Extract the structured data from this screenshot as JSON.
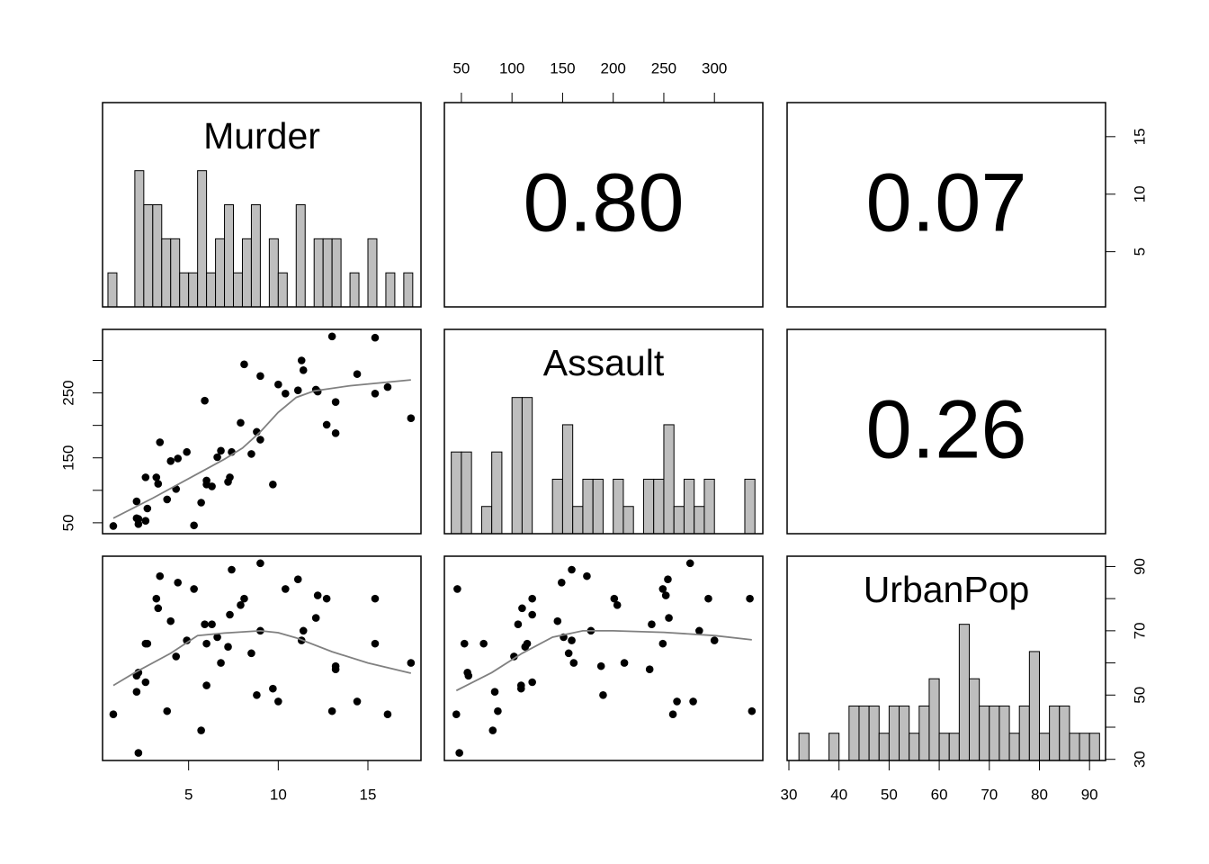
{
  "chart_data": {
    "type": "pairs",
    "variables": [
      {
        "name": "Murder",
        "values": [
          13.2,
          10,
          8.1,
          8.8,
          9,
          7.9,
          3.3,
          5.9,
          15.4,
          17.4,
          5.3,
          2.6,
          10.4,
          7.2,
          2.2,
          6,
          9.7,
          15.4,
          2.1,
          11.3,
          4.4,
          12.1,
          2.7,
          16.1,
          9,
          6,
          4.3,
          12.2,
          2.1,
          7.4,
          11.4,
          11.1,
          13,
          0.8,
          7.3,
          6.6,
          4.9,
          6.3,
          3.4,
          14.4,
          3.8,
          13.2,
          12.7,
          3.2,
          2.2,
          8.5,
          4,
          5.7,
          2.6,
          6.8
        ],
        "lim": [
          0.2,
          17.96
        ],
        "hist": {
          "bins": [
            0.5,
            1,
            1.5,
            2,
            2.5,
            3,
            3.5,
            4,
            4.5,
            5,
            5.5,
            6,
            6.5,
            7,
            7.5,
            8,
            8.5,
            9,
            9.5,
            10,
            10.5,
            11,
            11.5,
            12,
            12.5,
            13,
            13.5,
            14,
            14.5,
            15,
            15.5,
            16,
            16.5,
            17,
            17.5
          ],
          "counts": [
            1,
            0,
            0,
            4,
            3,
            3,
            2,
            2,
            1,
            1,
            4,
            1,
            2,
            3,
            1,
            2,
            3,
            0,
            2,
            1,
            0,
            3,
            0,
            2,
            2,
            2,
            0,
            1,
            0,
            2,
            0,
            1,
            0,
            1
          ],
          "ylim": [
            0,
            6
          ]
        }
      },
      {
        "name": "Assault",
        "values": [
          236,
          263,
          294,
          190,
          276,
          204,
          110,
          238,
          335,
          211,
          46,
          120,
          249,
          113,
          56,
          115,
          109,
          249,
          83,
          300,
          149,
          255,
          72,
          259,
          178,
          109,
          102,
          252,
          57,
          159,
          285,
          254,
          337,
          45,
          120,
          151,
          159,
          106,
          174,
          279,
          86,
          188,
          201,
          120,
          48,
          156,
          145,
          81,
          53,
          161
        ],
        "lim": [
          33.2,
          347.8
        ],
        "hist": {
          "bins": [
            40,
            50,
            60,
            70,
            80,
            90,
            100,
            110,
            120,
            130,
            140,
            150,
            160,
            170,
            180,
            190,
            200,
            210,
            220,
            230,
            240,
            250,
            260,
            270,
            280,
            290,
            300,
            310,
            320,
            330,
            340
          ],
          "counts": [
            3,
            3,
            0,
            1,
            3,
            0,
            5,
            5,
            0,
            0,
            2,
            4,
            1,
            2,
            2,
            0,
            2,
            1,
            0,
            2,
            2,
            4,
            1,
            2,
            1,
            2,
            0,
            0,
            0,
            2
          ],
          "ylim": [
            0,
            7.5
          ]
        }
      },
      {
        "name": "UrbanPop",
        "values": [
          58,
          48,
          80,
          50,
          91,
          78,
          77,
          72,
          80,
          60,
          83,
          54,
          83,
          65,
          57,
          66,
          52,
          66,
          51,
          67,
          85,
          74,
          66,
          44,
          70,
          53,
          62,
          81,
          56,
          89,
          70,
          86,
          45,
          44,
          75,
          68,
          67,
          72,
          87,
          48,
          45,
          59,
          80,
          80,
          32,
          63,
          73,
          39,
          66,
          60
        ],
        "lim": [
          29.64,
          93.2
        ],
        "hist": {
          "bins": [
            32,
            34,
            36,
            38,
            40,
            42,
            44,
            46,
            48,
            50,
            52,
            54,
            56,
            58,
            60,
            62,
            64,
            66,
            68,
            70,
            72,
            74,
            76,
            78,
            80,
            82,
            84,
            86,
            88,
            90,
            92
          ],
          "counts": [
            1,
            0,
            0,
            1,
            0,
            2,
            2,
            2,
            1,
            2,
            2,
            1,
            2,
            3,
            1,
            1,
            5,
            3,
            2,
            2,
            2,
            1,
            2,
            4,
            1,
            2,
            2,
            1,
            1,
            1
          ],
          "ylim": [
            0,
            7.5
          ]
        }
      }
    ],
    "correlations": [
      {
        "value": 0.8,
        "label": "0.80"
      },
      {
        "value": 0.07,
        "label": "0.07"
      },
      {
        "value": 0.26,
        "label": "0.26"
      }
    ],
    "smooths": [
      {
        "x": [
          0.8,
          3,
          5,
          7,
          8,
          9,
          10,
          11,
          12,
          14,
          17.4
        ],
        "y": [
          57,
          88,
          118,
          148,
          165,
          190,
          220,
          243,
          253,
          261,
          270
        ]
      },
      {
        "x": [
          0.8,
          2,
          4,
          5.5,
          7,
          9,
          10,
          11,
          13,
          15,
          17.4
        ],
        "y": [
          53,
          57,
          63,
          68.5,
          69.3,
          70,
          69.4,
          67.8,
          63.5,
          60,
          56.8
        ]
      },
      {
        "x": [
          45,
          80,
          110,
          140,
          170,
          200,
          250,
          300,
          337
        ],
        "y": [
          51.4,
          57,
          63,
          68,
          70,
          70,
          69.5,
          68.5,
          67.2
        ]
      }
    ],
    "axes": [
      {
        "position": "top",
        "ticks": [
          50,
          100,
          150,
          200,
          250,
          300
        ]
      },
      {
        "position": "right-top",
        "ticks": [
          5,
          10,
          15
        ]
      },
      {
        "position": "left",
        "ticks": [
          50,
          {
            "value": 100,
            "label": null
          },
          150,
          {
            "value": 200,
            "label": null
          },
          250,
          {
            "value": 300,
            "label": null
          }
        ]
      },
      {
        "position": "bottom-left",
        "ticks": [
          5,
          10,
          15
        ]
      },
      {
        "position": "bottom-right",
        "ticks": [
          30,
          40,
          50,
          60,
          70,
          80,
          90
        ]
      },
      {
        "position": "right-bottom",
        "ticks": [
          30,
          {
            "value": 40,
            "label": null
          },
          50,
          {
            "value": 60,
            "label": null
          },
          70,
          {
            "value": 80,
            "label": null
          },
          90
        ]
      }
    ],
    "hist_fill": "#bebebe",
    "smooth_color": "#808080",
    "point_color": "#000000"
  }
}
